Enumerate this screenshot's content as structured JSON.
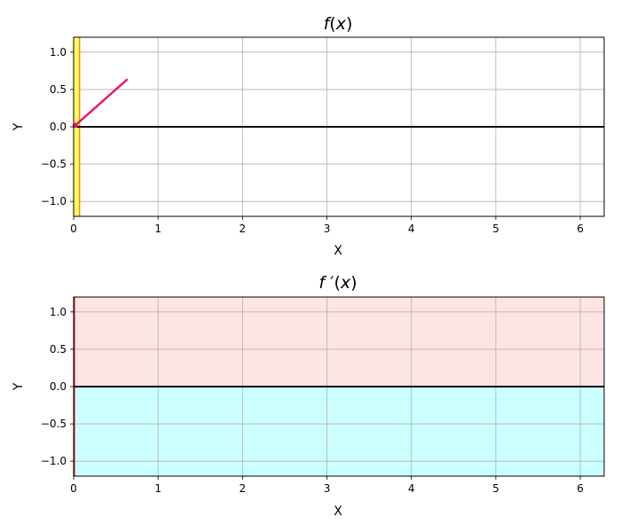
{
  "chart_data": [
    {
      "type": "line",
      "title_parts": [
        "f",
        "(",
        "x",
        ")"
      ],
      "xlabel": "X",
      "ylabel": "Y",
      "xlim": [
        0,
        6.283
      ],
      "ylim": [
        -1.2,
        1.2
      ],
      "xticks": [
        0,
        1,
        2,
        3,
        4,
        5,
        6
      ],
      "xtick_labels": [
        "0",
        "1",
        "2",
        "3",
        "4",
        "5",
        "6"
      ],
      "yticks": [
        -1.0,
        -0.5,
        0.0,
        0.5,
        1.0
      ],
      "ytick_labels": [
        "−1.0",
        "−0.5",
        "0.0",
        "0.5",
        "1.0"
      ],
      "grid": true,
      "highlight_band": {
        "x": [
          0.0,
          0.07
        ],
        "color": "#ffff66",
        "edge_color": "#ff8800"
      },
      "zero_line": {
        "y": 0,
        "color": "#000000"
      },
      "series": [
        {
          "x": [
            0.0,
            0.63
          ],
          "y": [
            0.0,
            0.63
          ],
          "color": "#e8197a"
        }
      ],
      "marker_point": {
        "x": 0.02,
        "y": 0.02,
        "color": "#e8197a"
      }
    },
    {
      "type": "area",
      "title_parts": [
        "f",
        " ′",
        "(",
        "x",
        ")"
      ],
      "xlabel": "X",
      "ylabel": "Y",
      "xlim": [
        0,
        6.283
      ],
      "ylim": [
        -1.2,
        1.2
      ],
      "xticks": [
        0,
        1,
        2,
        3,
        4,
        5,
        6
      ],
      "xtick_labels": [
        "0",
        "1",
        "2",
        "3",
        "4",
        "5",
        "6"
      ],
      "yticks": [
        -1.0,
        -0.5,
        0.0,
        0.5,
        1.0
      ],
      "ytick_labels": [
        "−1.0",
        "−0.5",
        "0.0",
        "0.5",
        "1.0"
      ],
      "grid": true,
      "positive_region_color": "#ffe4e4",
      "negative_region_color": "#ccffff",
      "zero_line": {
        "y": 0,
        "color": "#000000"
      },
      "edge_marker": {
        "x": 0.0,
        "color": "#cc0000"
      }
    }
  ]
}
